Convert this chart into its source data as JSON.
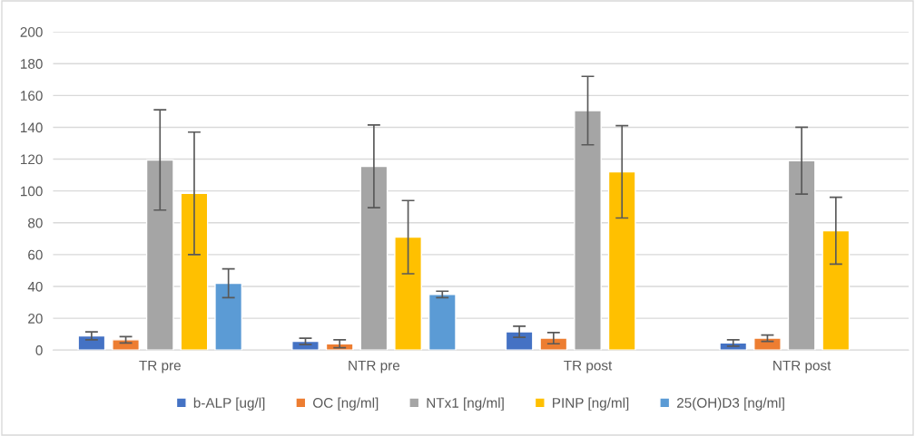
{
  "chart_data": {
    "type": "bar",
    "categories": [
      "TR pre",
      "NTR pre",
      "TR post",
      "NTR post"
    ],
    "series": [
      {
        "name": "b-ALP [ug/l]",
        "color": "#4472c4",
        "values": [
          9,
          5.5,
          11.5,
          4.5
        ],
        "errors": [
          2.5,
          2,
          3.5,
          2
        ]
      },
      {
        "name": "OC [ng/ml]",
        "color": "#ed7d31",
        "values": [
          6.5,
          4,
          7.5,
          7.5
        ],
        "errors": [
          2,
          2.5,
          3.5,
          2
        ]
      },
      {
        "name": "NTx1 [ng/ml]",
        "color": "#a5a5a5",
        "values": [
          119.5,
          115.5,
          150.5,
          119
        ],
        "errors": [
          31.5,
          26,
          21.5,
          21
        ]
      },
      {
        "name": "PINP [ng/ml]",
        "color": "#ffc000",
        "values": [
          98.5,
          71,
          112,
          75
        ],
        "errors": [
          38.5,
          23,
          29,
          21
        ]
      },
      {
        "name": "25(OH)D3 [ng/ml]",
        "color": "#5b9bd5",
        "values": [
          42,
          35,
          null,
          null
        ],
        "errors": [
          9,
          2,
          null,
          null
        ]
      }
    ],
    "ylim": [
      0,
      200
    ],
    "yticks": [
      0,
      20,
      40,
      60,
      80,
      100,
      120,
      140,
      160,
      180,
      200
    ],
    "grid": "y",
    "legend": "bottom"
  }
}
